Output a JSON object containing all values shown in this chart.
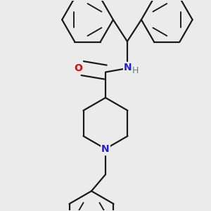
{
  "background_color": "#ebebeb",
  "bond_color": "#1a1a1a",
  "bond_width": 1.6,
  "atom_colors": {
    "O": "#ee0000",
    "N_amide": "#2222cc",
    "N_pip": "#2222cc",
    "H": "#2f9090",
    "C": "#1a1a1a"
  },
  "font_size_atoms": 10,
  "figsize": [
    3.0,
    3.0
  ],
  "dpi": 100
}
